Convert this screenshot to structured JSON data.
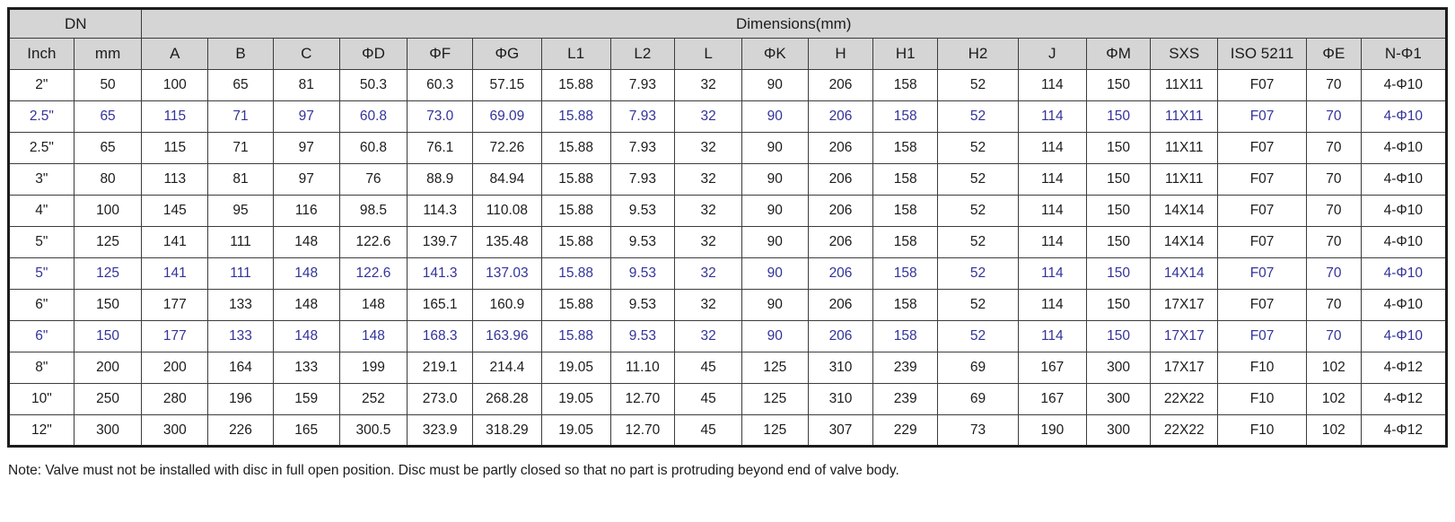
{
  "colors": {
    "highlight_text": "#33339b",
    "header_bg": "#d5d5d5",
    "border": "#3c3c3c"
  },
  "table": {
    "group_headers": [
      {
        "label": "DN",
        "colspan": 2
      },
      {
        "label": "Dimensions(mm)",
        "colspan": 19
      }
    ],
    "columns": [
      "Inch",
      "mm",
      "A",
      "B",
      "C",
      "ΦD",
      "ΦF",
      "ΦG",
      "L1",
      "L2",
      "L",
      "ΦK",
      "H",
      "H1",
      "H2",
      "J",
      "ΦM",
      "SXS",
      "ISO 5211",
      "ΦE",
      "N-Φ1"
    ],
    "rows": [
      {
        "highlight": false,
        "cells": [
          "2\"",
          "50",
          "100",
          "65",
          "81",
          "50.3",
          "60.3",
          "57.15",
          "15.88",
          "7.93",
          "32",
          "90",
          "206",
          "158",
          "52",
          "114",
          "150",
          "11X11",
          "F07",
          "70",
          "4-Φ10"
        ]
      },
      {
        "highlight": true,
        "cells": [
          "2.5\"",
          "65",
          "115",
          "71",
          "97",
          "60.8",
          "73.0",
          "69.09",
          "15.88",
          "7.93",
          "32",
          "90",
          "206",
          "158",
          "52",
          "114",
          "150",
          "11X11",
          "F07",
          "70",
          "4-Φ10"
        ]
      },
      {
        "highlight": false,
        "cells": [
          "2.5\"",
          "65",
          "115",
          "71",
          "97",
          "60.8",
          "76.1",
          "72.26",
          "15.88",
          "7.93",
          "32",
          "90",
          "206",
          "158",
          "52",
          "114",
          "150",
          "11X11",
          "F07",
          "70",
          "4-Φ10"
        ]
      },
      {
        "highlight": false,
        "cells": [
          "3\"",
          "80",
          "113",
          "81",
          "97",
          "76",
          "88.9",
          "84.94",
          "15.88",
          "7.93",
          "32",
          "90",
          "206",
          "158",
          "52",
          "114",
          "150",
          "11X11",
          "F07",
          "70",
          "4-Φ10"
        ]
      },
      {
        "highlight": false,
        "cells": [
          "4\"",
          "100",
          "145",
          "95",
          "116",
          "98.5",
          "114.3",
          "110.08",
          "15.88",
          "9.53",
          "32",
          "90",
          "206",
          "158",
          "52",
          "114",
          "150",
          "14X14",
          "F07",
          "70",
          "4-Φ10"
        ]
      },
      {
        "highlight": false,
        "cells": [
          "5\"",
          "125",
          "141",
          "111",
          "148",
          "122.6",
          "139.7",
          "135.48",
          "15.88",
          "9.53",
          "32",
          "90",
          "206",
          "158",
          "52",
          "114",
          "150",
          "14X14",
          "F07",
          "70",
          "4-Φ10"
        ]
      },
      {
        "highlight": true,
        "cells": [
          "5\"",
          "125",
          "141",
          "111",
          "148",
          "122.6",
          "141.3",
          "137.03",
          "15.88",
          "9.53",
          "32",
          "90",
          "206",
          "158",
          "52",
          "114",
          "150",
          "14X14",
          "F07",
          "70",
          "4-Φ10"
        ]
      },
      {
        "highlight": false,
        "cells": [
          "6\"",
          "150",
          "177",
          "133",
          "148",
          "148",
          "165.1",
          "160.9",
          "15.88",
          "9.53",
          "32",
          "90",
          "206",
          "158",
          "52",
          "114",
          "150",
          "17X17",
          "F07",
          "70",
          "4-Φ10"
        ]
      },
      {
        "highlight": true,
        "cells": [
          "6\"",
          "150",
          "177",
          "133",
          "148",
          "148",
          "168.3",
          "163.96",
          "15.88",
          "9.53",
          "32",
          "90",
          "206",
          "158",
          "52",
          "114",
          "150",
          "17X17",
          "F07",
          "70",
          "4-Φ10"
        ]
      },
      {
        "highlight": false,
        "cells": [
          "8\"",
          "200",
          "200",
          "164",
          "133",
          "199",
          "219.1",
          "214.4",
          "19.05",
          "11.10",
          "45",
          "125",
          "310",
          "239",
          "69",
          "167",
          "300",
          "17X17",
          "F10",
          "102",
          "4-Φ12"
        ]
      },
      {
        "highlight": false,
        "cells": [
          "10\"",
          "250",
          "280",
          "196",
          "159",
          "252",
          "273.0",
          "268.28",
          "19.05",
          "12.70",
          "45",
          "125",
          "310",
          "239",
          "69",
          "167",
          "300",
          "22X22",
          "F10",
          "102",
          "4-Φ12"
        ]
      },
      {
        "highlight": false,
        "cells": [
          "12\"",
          "300",
          "300",
          "226",
          "165",
          "300.5",
          "323.9",
          "318.29",
          "19.05",
          "12.70",
          "45",
          "125",
          "307",
          "229",
          "73",
          "190",
          "300",
          "22X22",
          "F10",
          "102",
          "4-Φ12"
        ]
      }
    ]
  },
  "note": "Note: Valve must not be installed with disc in full open position. Disc must be partly closed so that no part is protruding beyond end of valve body."
}
